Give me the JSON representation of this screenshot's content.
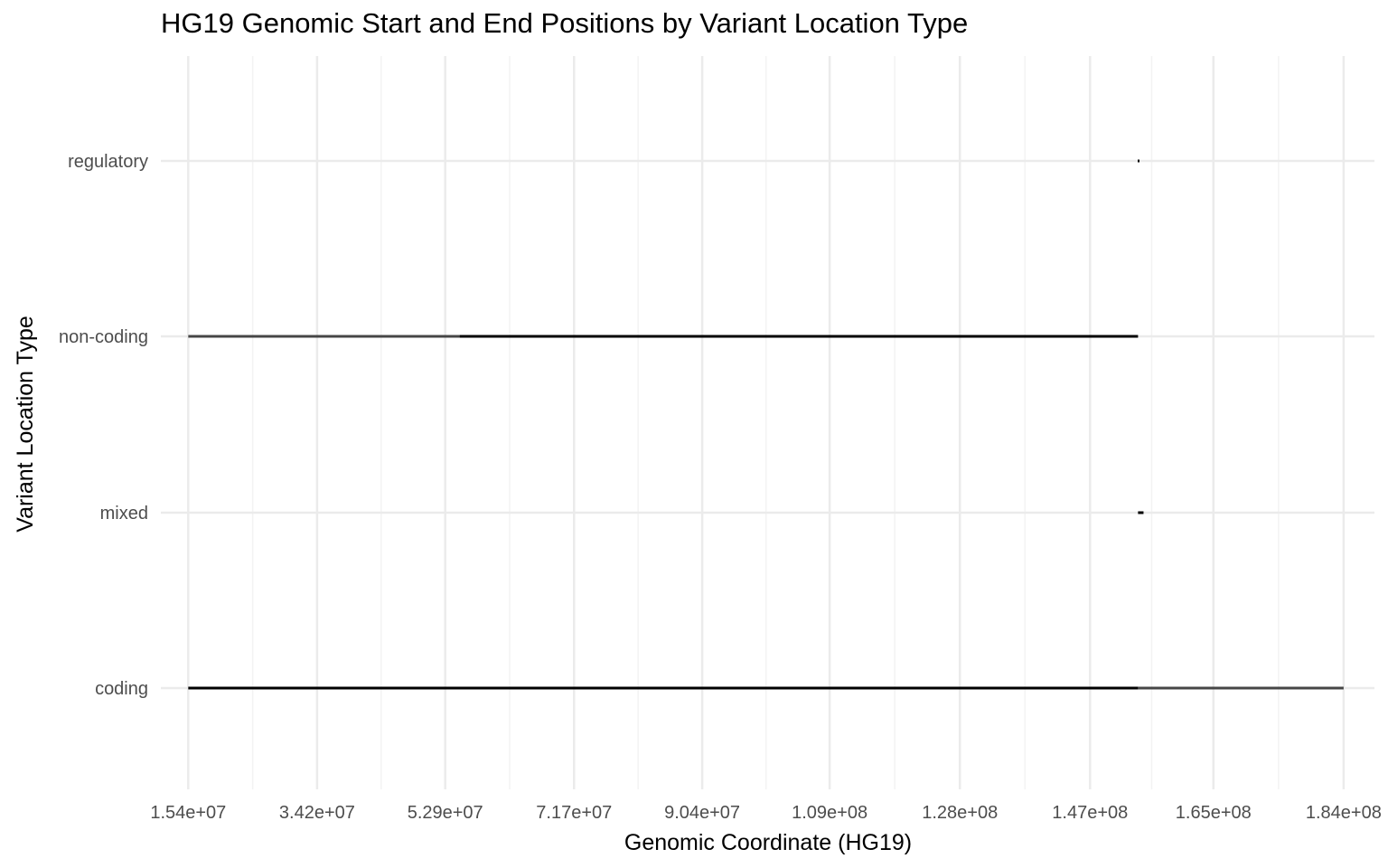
{
  "chart_data": {
    "type": "range",
    "title": "HG19 Genomic Start and End Positions by Variant Location Type",
    "xlabel": "Genomic Coordinate (HG19)",
    "ylabel": "Variant Location Type",
    "categories": [
      "coding",
      "mixed",
      "non-coding",
      "regulatory"
    ],
    "xlim": [
      11400000,
      188500000
    ],
    "x_ticks": [
      15400000,
      34200000,
      52900000,
      71700000,
      90400000,
      109000000,
      128000000,
      147000000,
      165000000,
      184000000
    ],
    "x_tick_labels": [
      "1.54e+07",
      "3.42e+07",
      "5.29e+07",
      "7.17e+07",
      "9.04e+07",
      "1.09e+08",
      "1.28e+08",
      "1.47e+08",
      "1.65e+08",
      "1.84e+08"
    ],
    "series": [
      {
        "category": "coding",
        "segments": [
          {
            "start": 15400000,
            "end": 154000000,
            "opacity": 1.0
          },
          {
            "start": 154000000,
            "end": 184000000,
            "opacity": 0.7
          }
        ]
      },
      {
        "category": "mixed",
        "segments": [
          {
            "start": 154000000,
            "end": 154800000,
            "opacity": 1.0
          }
        ]
      },
      {
        "category": "non-coding",
        "segments": [
          {
            "start": 15400000,
            "end": 55000000,
            "opacity": 0.7
          },
          {
            "start": 55000000,
            "end": 154000000,
            "opacity": 1.0
          }
        ]
      },
      {
        "category": "regulatory",
        "segments": [
          {
            "start": 153950000,
            "end": 154150000,
            "opacity": 1.0
          }
        ]
      }
    ],
    "grid": true,
    "legend": "none",
    "colors": {
      "segment": "#000000",
      "grid_major": "#ebebeb",
      "grid_minor": "#f3f3f3",
      "tick_label": "#4d4d4d",
      "axis_title": "#000000"
    }
  }
}
